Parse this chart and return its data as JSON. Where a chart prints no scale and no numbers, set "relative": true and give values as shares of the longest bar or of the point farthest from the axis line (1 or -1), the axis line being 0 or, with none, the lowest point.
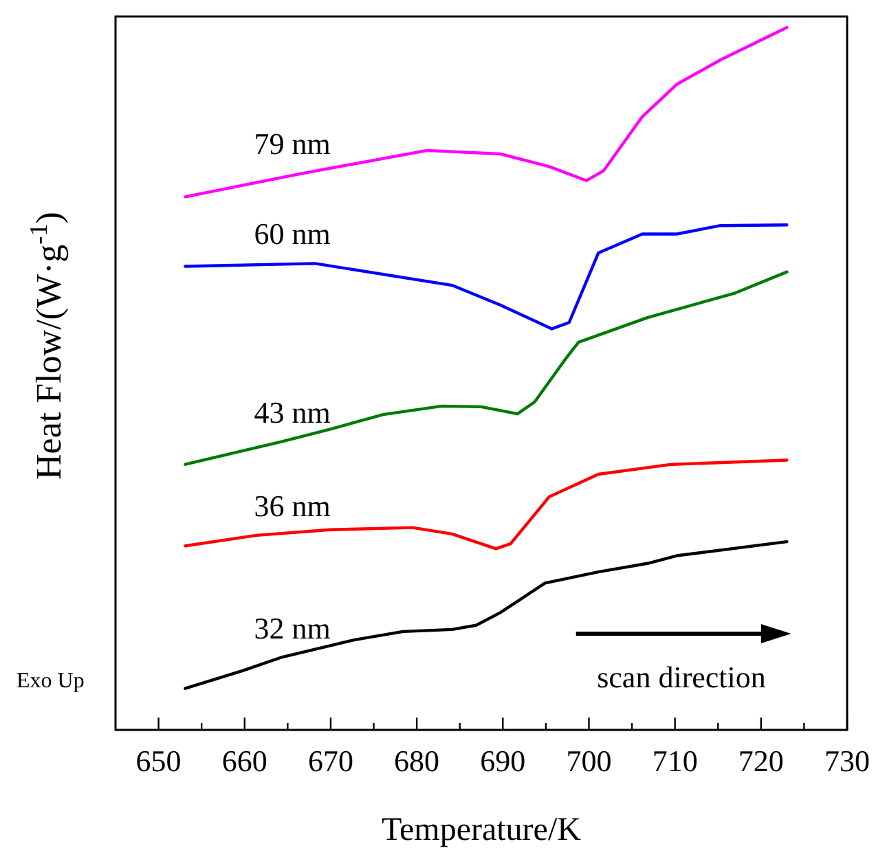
{
  "chart_data": {
    "type": "line",
    "relative": true,
    "xlabel": "Temperature/K",
    "ylabel": "Heat Flow/(W·g$^{-1}$)",
    "xlim": [
      645,
      730
    ],
    "xticks": [
      650,
      {
        "value": 655,
        "label": null
      },
      660,
      {
        "value": 665,
        "label": null
      },
      670,
      {
        "value": 675,
        "label": null
      },
      680,
      {
        "value": 685,
        "label": null
      },
      690,
      {
        "value": 695,
        "label": null
      },
      700,
      {
        "value": 705,
        "label": null
      },
      710,
      {
        "value": 715,
        "label": null
      },
      720,
      {
        "value": 725,
        "label": null
      },
      730
    ],
    "grid": false,
    "marker": "none",
    "line_style": "solid",
    "annotations": [
      "Exo Up",
      "scan direction"
    ],
    "series": [
      {
        "name": "79 nm",
        "color": "#ff00ff",
        "x": [
          653.1,
          667,
          681.2,
          689.7,
          695.4,
          699.7,
          701.7,
          706.2,
          710.2,
          715.3,
          723
        ],
        "values": [
          0.759,
          0.793,
          0.825,
          0.82,
          0.802,
          0.782,
          0.796,
          0.873,
          0.919,
          0.954,
          1
        ]
      },
      {
        "name": "60 nm",
        "color": "#0000ff",
        "x": [
          653.1,
          668.2,
          684.1,
          689.7,
          695.7,
          697.7,
          701.1,
          706.2,
          710.2,
          715.3,
          723
        ],
        "values": [
          0.66,
          0.664,
          0.633,
          0.605,
          0.571,
          0.58,
          0.679,
          0.706,
          0.706,
          0.718,
          0.719
        ]
      },
      {
        "name": "43 nm",
        "color": "#007a00",
        "x": [
          653.1,
          664.2,
          669.9,
          676.1,
          682.9,
          687.5,
          691.7,
          693.7,
          697.4,
          698.8,
          706.8,
          717,
          723
        ],
        "values": [
          0.378,
          0.41,
          0.428,
          0.449,
          0.461,
          0.46,
          0.45,
          0.467,
          0.53,
          0.552,
          0.587,
          0.622,
          0.652
        ]
      },
      {
        "name": "36 nm",
        "color": "#ff0000",
        "x": [
          653.1,
          661.4,
          669.9,
          679.5,
          684.1,
          689.2,
          690.9,
          695.4,
          701.1,
          709.6,
          723
        ],
        "values": [
          0.262,
          0.277,
          0.285,
          0.288,
          0.279,
          0.258,
          0.265,
          0.332,
          0.364,
          0.378,
          0.384
        ]
      },
      {
        "name": "32 nm",
        "color": "#000000",
        "x": [
          653.1,
          659.7,
          664.2,
          672.7,
          678.4,
          684.1,
          686.9,
          689.7,
          694.9,
          701.1,
          706.8,
          710.2,
          723
        ],
        "values": [
          0.059,
          0.084,
          0.103,
          0.128,
          0.14,
          0.143,
          0.149,
          0.167,
          0.209,
          0.225,
          0.237,
          0.248,
          0.268
        ]
      }
    ]
  }
}
